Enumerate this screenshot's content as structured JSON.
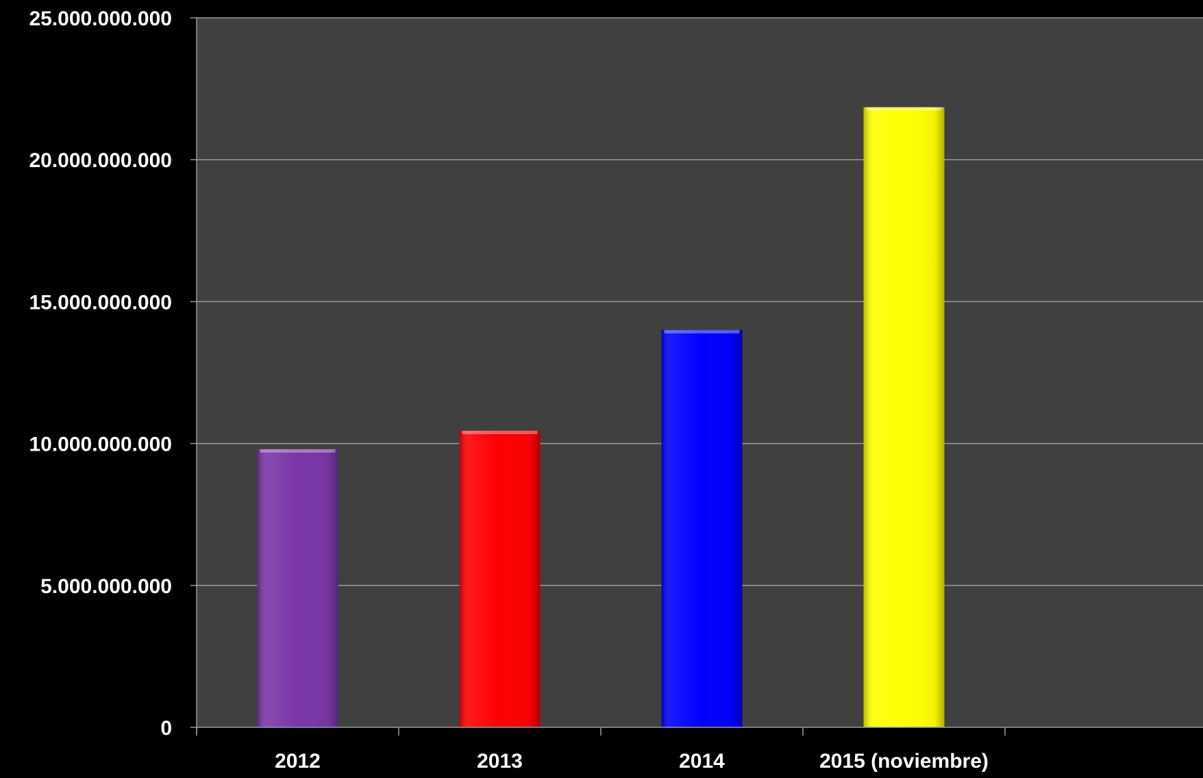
{
  "chart_data": {
    "type": "bar",
    "title": "",
    "xlabel": "",
    "ylabel": "",
    "categories": [
      "2012",
      "2013",
      "2014",
      "2015 (noviembre)"
    ],
    "values": [
      9800000000,
      10450000000,
      14000000000,
      21850000000
    ],
    "colors": [
      "#7a36a8",
      "#ff0000",
      "#0000ff",
      "#ffff00"
    ],
    "ylim": [
      0,
      25000000000
    ],
    "yticks": [
      0,
      5000000000,
      10000000000,
      15000000000,
      20000000000,
      25000000000
    ],
    "ytick_labels": [
      "0",
      "5.000.000.000",
      "10.000.000.000",
      "15.000.000.000",
      "20.000.000.000",
      "25.000.000.000"
    ],
    "grid": true,
    "plot_background": "#404040",
    "page_background": "#000000",
    "gridline_color": "#9a9a9a",
    "text_color": "#ffffff"
  }
}
